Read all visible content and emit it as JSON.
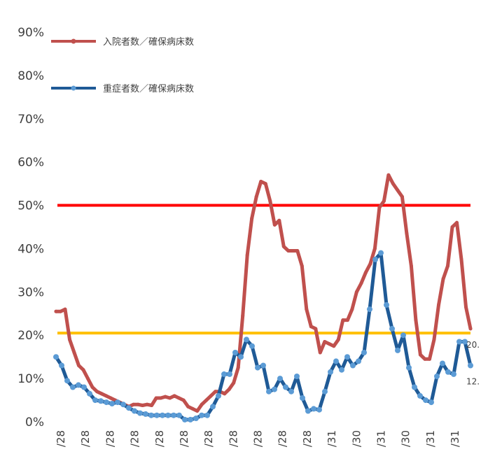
{
  "chart_data": {
    "type": "line",
    "title": "",
    "xlabel": "",
    "ylabel": "",
    "ylim": [
      0,
      90
    ],
    "y_ticks": [
      "0%",
      "10%",
      "20%",
      "30%",
      "40%",
      "50%",
      "60%",
      "70%",
      "80%",
      "90%"
    ],
    "grid": false,
    "legend_position": "top-left",
    "x_tick_labels": [
      "/28",
      "/28",
      "/28",
      "/28",
      "/28",
      "/28",
      "/28",
      "/28",
      "/28",
      "/28",
      "/28",
      "/31",
      "/30",
      "/31",
      "/30",
      "/31",
      "/31"
    ],
    "reference_lines": [
      {
        "value": 50,
        "color": "#ff0000"
      },
      {
        "value": 20.5,
        "color": "#ffc000"
      }
    ],
    "series": [
      {
        "name": "入院者数／確保病床数",
        "color": "#c0504d",
        "marker_color": "#c0504d",
        "values": [
          25.5,
          25.5,
          26,
          19,
          16,
          13,
          12,
          10,
          8,
          7,
          6.5,
          6,
          5.5,
          5,
          4.5,
          4,
          3.5,
          4,
          4,
          3.8,
          4,
          3.8,
          5.5,
          5.5,
          5.8,
          5.5,
          6,
          5.5,
          5,
          3.5,
          3,
          2.5,
          4,
          5,
          6,
          7,
          7,
          6.5,
          7.5,
          9,
          12.5,
          24.5,
          38.5,
          47,
          52,
          55.5,
          55,
          51,
          45.5,
          46.5,
          40.5,
          39.5,
          39.5,
          39.5,
          36,
          26,
          22,
          21.5,
          16,
          18.5,
          18,
          17.5,
          19,
          23.5,
          23.5,
          26,
          30,
          32,
          34.5,
          36.5,
          40,
          49.5,
          51,
          57,
          55,
          53.5,
          52,
          43.5,
          36,
          23.5,
          15.5,
          14.5,
          14.5,
          19,
          27,
          33,
          36,
          45,
          46,
          37.5,
          26.5,
          21.5
        ],
        "end_label": "20."
      },
      {
        "name": "重症者数／確保病床数",
        "color": "#1f5a96",
        "marker_color": "#5b9bd5",
        "values": [
          15,
          13,
          9.5,
          8,
          8.5,
          8,
          6.5,
          5,
          4.8,
          4.5,
          4.2,
          4.5,
          4,
          3.2,
          2.5,
          2,
          1.8,
          1.5,
          1.5,
          1.5,
          1.5,
          1.5,
          1.5,
          0.5,
          0.5,
          0.8,
          1.5,
          1.5,
          3.5,
          6,
          11,
          11,
          16,
          15,
          19,
          17.5,
          12.5,
          13,
          7,
          7.5,
          10,
          8,
          7,
          10.5,
          5.5,
          2.5,
          3,
          2.8,
          7,
          11.5,
          14,
          12,
          15,
          13,
          14,
          16,
          26,
          37.5,
          39,
          27,
          21.5,
          16.5,
          20,
          12.5,
          8,
          6,
          5,
          4.5,
          10.5,
          13.5,
          11.5,
          11,
          18.5,
          18.5,
          13
        ],
        "end_label": "12."
      }
    ]
  }
}
